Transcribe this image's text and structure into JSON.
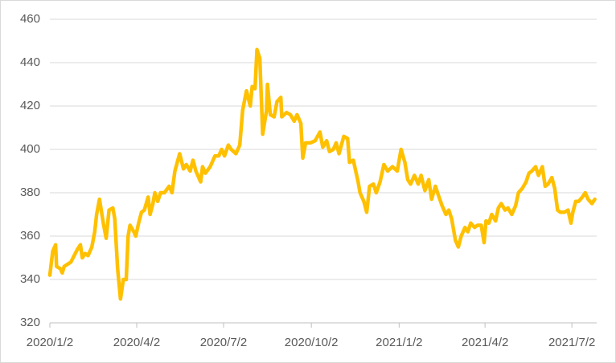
{
  "chart_data": {
    "type": "line",
    "color": "#ffc000",
    "grid": true,
    "ylim": [
      320,
      460
    ],
    "yticks": [
      320,
      340,
      360,
      380,
      400,
      420,
      440,
      460
    ],
    "xlim": [
      "2020/1/2",
      "2021/7/28"
    ],
    "xticks": [
      "2020/1/2",
      "2020/4/2",
      "2020/7/2",
      "2020/10/2",
      "2021/1/2",
      "2021/4/2",
      "2021/7/2"
    ],
    "x": [
      "2020/1/2",
      "2020/1/5",
      "2020/1/8",
      "2020/1/9",
      "2020/1/13",
      "2020/1/15",
      "2020/1/17",
      "2020/1/24",
      "2020/1/31",
      "2020/2/3",
      "2020/2/5",
      "2020/2/8",
      "2020/2/11",
      "2020/2/15",
      "2020/2/18",
      "2020/2/20",
      "2020/2/23",
      "2020/2/27",
      "2020/3/1",
      "2020/3/4",
      "2020/3/8",
      "2020/3/10",
      "2020/3/13",
      "2020/3/16",
      "2020/3/19",
      "2020/3/22",
      "2020/3/24",
      "2020/3/26",
      "2020/3/30",
      "2020/4/1",
      "2020/4/4",
      "2020/4/7",
      "2020/4/10",
      "2020/4/14",
      "2020/4/16",
      "2020/4/19",
      "2020/4/21",
      "2020/4/24",
      "2020/4/27",
      "2020/5/1",
      "2020/5/6",
      "2020/5/9",
      "2020/5/12",
      "2020/5/17",
      "2020/5/21",
      "2020/5/24",
      "2020/5/28",
      "2020/5/31",
      "2020/6/3",
      "2020/6/8",
      "2020/6/10",
      "2020/6/13",
      "2020/6/18",
      "2020/6/23",
      "2020/6/27",
      "2020/6/30",
      "2020/7/3",
      "2020/7/7",
      "2020/7/10",
      "2020/7/15",
      "2020/7/19",
      "2020/7/22",
      "2020/7/26",
      "2020/7/30",
      "2020/8/1",
      "2020/8/4",
      "2020/8/6",
      "2020/8/9",
      "2020/8/12",
      "2020/8/16",
      "2020/8/17",
      "2020/8/20",
      "2020/8/24",
      "2020/8/27",
      "2020/8/31",
      "2020/9/1",
      "2020/9/6",
      "2020/9/10",
      "2020/9/14",
      "2020/9/17",
      "2020/9/21",
      "2020/9/23",
      "2020/9/26",
      "2020/10/1",
      "2020/10/6",
      "2020/10/11",
      "2020/10/14",
      "2020/10/18",
      "2020/10/21",
      "2020/10/25",
      "2020/10/28",
      "2020/10/31",
      "2020/11/5",
      "2020/11/9",
      "2020/11/11",
      "2020/11/15",
      "2020/11/20",
      "2020/11/22",
      "2020/11/26",
      "2020/11/29",
      "2020/12/2",
      "2020/12/6",
      "2020/12/9",
      "2020/12/13",
      "2020/12/17",
      "2020/12/21",
      "2020/12/26",
      "2020/12/31",
      "2021/1/4",
      "2021/1/8",
      "2021/1/11",
      "2021/1/14",
      "2021/1/18",
      "2021/1/22",
      "2021/1/25",
      "2021/1/29",
      "2021/2/2",
      "2021/2/5",
      "2021/2/9",
      "2021/2/12",
      "2021/2/16",
      "2021/2/20",
      "2021/2/23",
      "2021/2/26",
      "2021/3/2",
      "2021/3/5",
      "2021/3/8",
      "2021/3/12",
      "2021/3/15",
      "2021/3/18",
      "2021/3/22",
      "2021/3/25",
      "2021/3/29",
      "2021/4/1",
      "2021/4/3",
      "2021/4/6",
      "2021/4/9",
      "2021/4/13",
      "2021/4/16",
      "2021/4/19",
      "2021/4/23",
      "2021/4/26",
      "2021/4/30",
      "2021/5/4",
      "2021/5/7",
      "2021/5/11",
      "2021/5/15",
      "2021/5/18",
      "2021/5/21",
      "2021/5/25",
      "2021/5/28",
      "2021/6/1",
      "2021/6/4",
      "2021/6/7",
      "2021/6/11",
      "2021/6/14",
      "2021/6/17",
      "2021/6/20",
      "2021/6/24",
      "2021/6/28",
      "2021/7/1",
      "2021/7/3",
      "2021/7/6",
      "2021/7/9",
      "2021/7/13",
      "2021/7/16",
      "2021/7/19",
      "2021/7/23",
      "2021/7/26"
    ],
    "values": [
      342,
      353,
      356,
      346,
      345,
      343,
      346,
      348,
      354,
      356,
      350,
      352,
      351,
      355,
      362,
      370,
      377,
      366,
      359,
      372,
      373,
      368,
      345,
      331,
      340,
      340,
      360,
      365,
      362,
      360,
      366,
      371,
      372,
      378,
      370,
      375,
      380,
      376,
      380,
      380,
      383,
      380,
      390,
      398,
      391,
      393,
      390,
      395,
      390,
      385,
      392,
      389,
      392,
      397,
      397,
      400,
      397,
      402,
      400,
      398,
      402,
      418,
      427,
      420,
      429,
      428,
      446,
      442,
      407,
      418,
      430,
      416,
      415,
      422,
      424,
      415,
      417,
      416,
      413,
      416,
      412,
      396,
      403,
      403,
      404,
      408,
      401,
      404,
      399,
      400,
      403,
      398,
      406,
      405,
      394,
      395,
      385,
      380,
      376,
      371,
      383,
      384,
      380,
      385,
      393,
      390,
      392,
      390,
      400,
      394,
      386,
      384,
      388,
      384,
      388,
      381,
      386,
      377,
      383,
      379,
      374,
      370,
      372,
      368,
      358,
      355,
      360,
      364,
      362,
      366,
      364,
      365,
      365,
      357,
      367,
      366,
      370,
      367,
      373,
      375,
      372,
      373,
      370,
      374,
      380,
      382,
      385,
      389,
      390,
      392,
      388,
      392,
      383,
      384,
      387,
      382,
      372,
      371,
      371,
      372,
      366,
      371,
      376,
      376,
      378,
      380,
      377,
      375,
      377
    ]
  }
}
